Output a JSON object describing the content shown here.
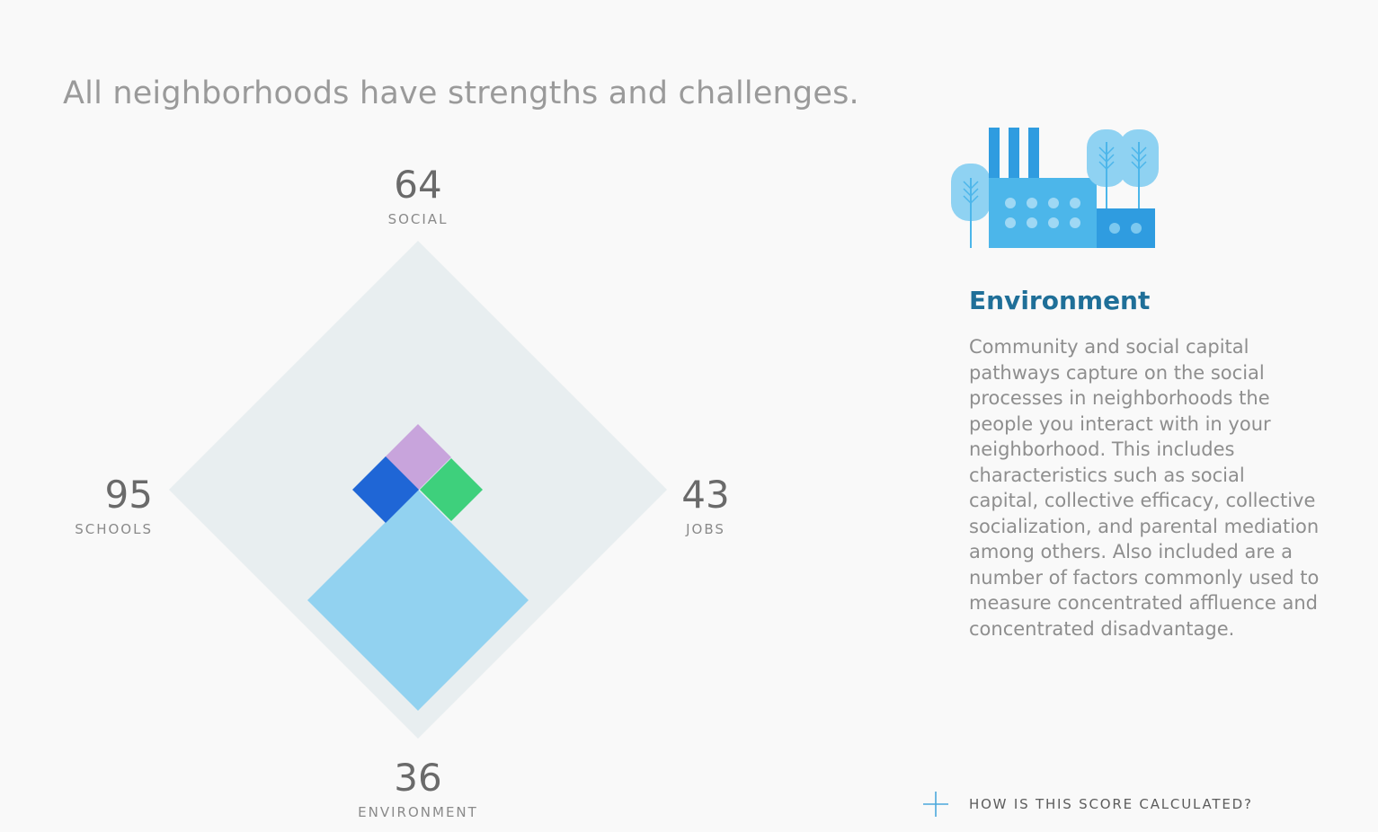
{
  "headline": "All neighborhoods have strengths and challenges.",
  "scores": {
    "social": {
      "value": "64",
      "label": "SOCIAL"
    },
    "schools": {
      "value": "95",
      "label": "SCHOOLS"
    },
    "jobs": {
      "value": "43",
      "label": "JOBS"
    },
    "environment": {
      "value": "36",
      "label": "ENVIRONMENT"
    }
  },
  "colors": {
    "background_diamond": "#e8eef0",
    "social": "#c8a4dc",
    "schools": "#1f66d6",
    "jobs": "#3ed07c",
    "environment": "#92d2f0",
    "title": "#1f6f98",
    "icon_blue": "#4cb6ea",
    "icon_dark_blue": "#2f9ce0",
    "icon_tree": "#8fd2f2"
  },
  "panel": {
    "icon": "factory-with-trees-icon",
    "title": "Environment",
    "body": "Community and social capital pathways capture on the social processes in neighborhoods the people you interact with in your neighborhood. This includes characteristics such as social capital, collective efficacy, collective socialization, and parental mediation among others. Also included are a number of factors commonly used to measure concentrated affluence and concentrated disadvantage."
  },
  "calc_link": {
    "icon": "plus-icon",
    "label": "HOW IS THIS SCORE CALCULATED?"
  }
}
